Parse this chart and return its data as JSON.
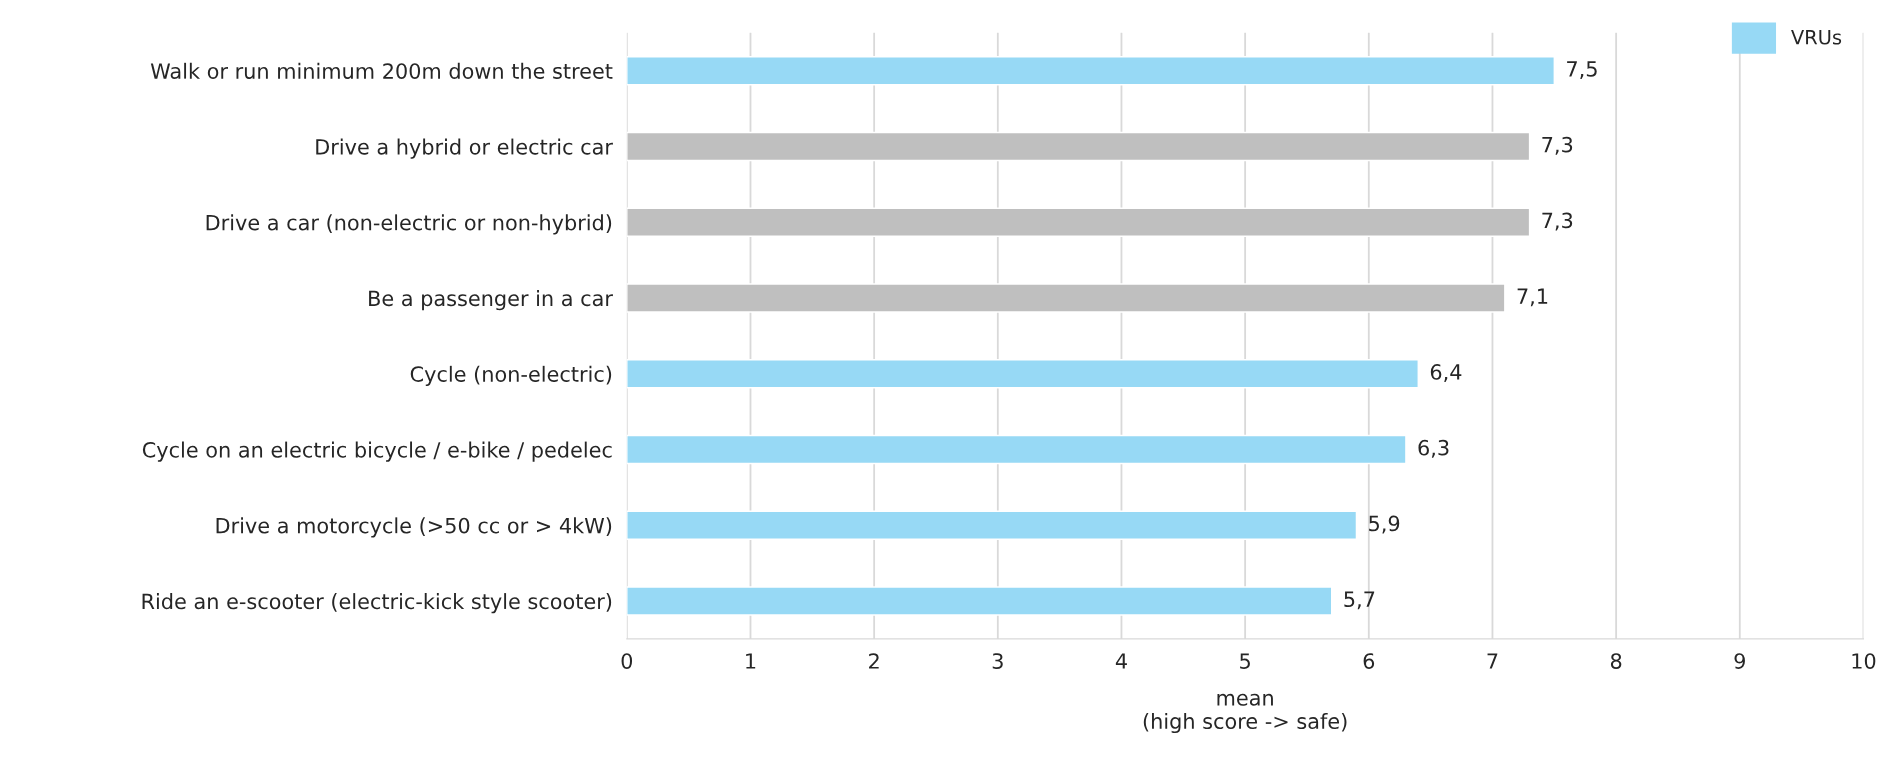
{
  "chart_data": {
    "type": "bar",
    "orientation": "horizontal",
    "categories": [
      "Walk or run minimum 200m down the street",
      "Drive a hybrid or electric car",
      "Drive a car (non-electric or non-hybrid)",
      "Be a passenger in a car",
      "Cycle (non-electric)",
      "Cycle on an electric bicycle / e-bike / pedelec",
      "Drive a motorcycle (>50 cc or > 4kW)",
      "Ride an e-scooter (electric-kick style scooter)"
    ],
    "series": [
      {
        "name": "VRUs",
        "color": "#97d9f5",
        "values": [
          7.5,
          null,
          null,
          null,
          6.4,
          6.3,
          5.9,
          5.7
        ],
        "value_labels": [
          "7,5",
          null,
          null,
          null,
          "6,4",
          "6,3",
          "5,9",
          "5,7"
        ]
      },
      {
        "color": "#bfbfbf",
        "values": [
          null,
          7.3,
          7.3,
          7.1,
          null,
          null,
          null,
          null
        ],
        "value_labels": [
          null,
          "7,3",
          "7,3",
          "7,1",
          null,
          null,
          null,
          null
        ]
      }
    ],
    "xlabel": "mean\n(high score -> safe)",
    "xlim": [
      0,
      10
    ],
    "xticks": [
      0,
      1,
      2,
      3,
      4,
      5,
      6,
      7,
      8,
      9,
      10
    ],
    "grid": "x",
    "legend": "top right"
  }
}
